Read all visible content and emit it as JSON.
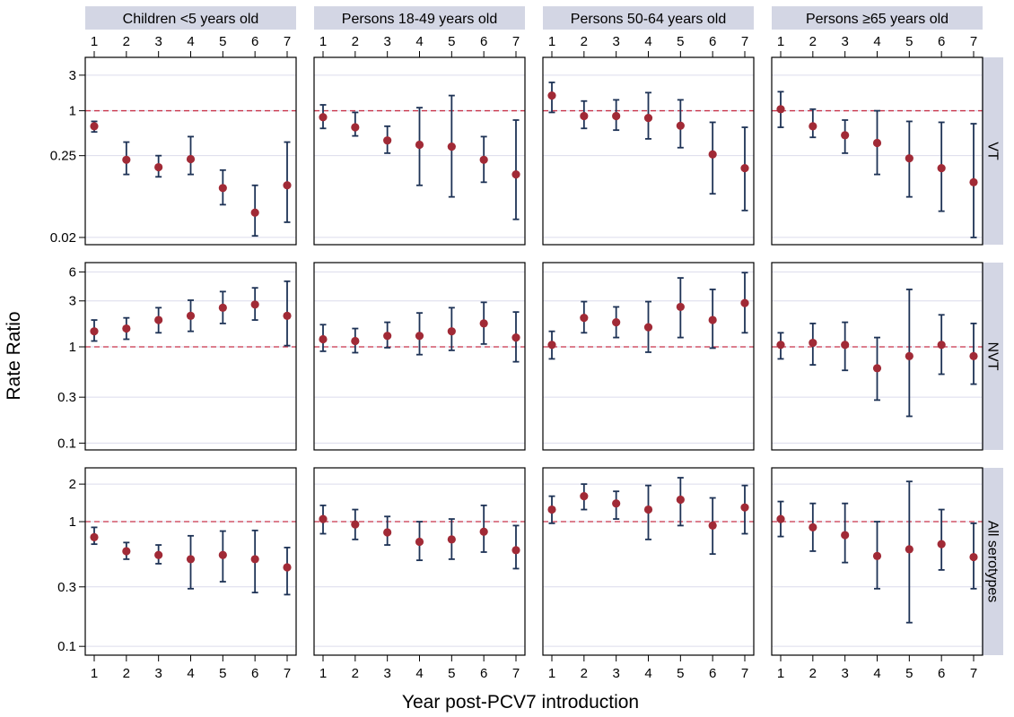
{
  "chart_data": {
    "type": "scatter",
    "description_kind": "faceted point estimates with 95% confidence intervals, log y-axis",
    "xlabel": "Year post-PCV7 introduction",
    "ylabel": "Rate Ratio",
    "x_ticks": [
      1,
      2,
      3,
      4,
      5,
      6,
      7
    ],
    "y_scale": "log",
    "reference_line": 1,
    "grid": "horizontal",
    "columns": [
      "Children <5 years old",
      "Persons 18-49 years old",
      "Persons 50-64 years old",
      "Persons ≥65 years old"
    ],
    "rows": [
      {
        "label": "VT",
        "y_ticks": [
          0.02,
          0.25,
          1,
          3
        ],
        "y_tick_labels": [
          "0.02",
          "0.25",
          "1",
          "3"
        ],
        "ylim": [
          0.016,
          5.2
        ],
        "panels": [
          {
            "estimate": [
              0.62,
              0.22,
              0.175,
              0.225,
              0.092,
              0.043,
              0.1
            ],
            "lower": [
              0.52,
              0.14,
              0.13,
              0.14,
              0.055,
              0.021,
              0.032
            ],
            "upper": [
              0.72,
              0.38,
              0.25,
              0.45,
              0.16,
              0.1,
              0.38
            ]
          },
          {
            "estimate": [
              0.82,
              0.6,
              0.4,
              0.35,
              0.33,
              0.22,
              0.14
            ],
            "lower": [
              0.58,
              0.46,
              0.27,
              0.1,
              0.07,
              0.11,
              0.035
            ],
            "upper": [
              1.2,
              0.95,
              0.62,
              1.1,
              1.6,
              0.45,
              0.75
            ]
          },
          {
            "estimate": [
              1.6,
              0.85,
              0.85,
              0.8,
              0.63,
              0.26,
              0.17
            ],
            "lower": [
              0.95,
              0.58,
              0.55,
              0.42,
              0.32,
              0.077,
              0.046
            ],
            "upper": [
              2.4,
              1.35,
              1.4,
              1.75,
              1.4,
              0.7,
              0.6
            ]
          },
          {
            "estimate": [
              1.05,
              0.62,
              0.47,
              0.37,
              0.23,
              0.17,
              0.11
            ],
            "lower": [
              0.6,
              0.44,
              0.27,
              0.14,
              0.07,
              0.045,
              0.02
            ],
            "upper": [
              1.8,
              1.05,
              0.75,
              1.0,
              0.72,
              0.7,
              0.67
            ]
          }
        ]
      },
      {
        "label": "NVT",
        "y_ticks": [
          0.1,
          0.3,
          1,
          3,
          6
        ],
        "y_tick_labels": [
          "0.1",
          "0.3",
          "1",
          "3",
          "6"
        ],
        "ylim": [
          0.085,
          7.5
        ],
        "panels": [
          {
            "estimate": [
              1.45,
              1.55,
              1.9,
              2.1,
              2.55,
              2.75,
              2.1
            ],
            "lower": [
              1.15,
              1.2,
              1.4,
              1.45,
              1.75,
              1.9,
              1.03
            ],
            "upper": [
              1.9,
              2.0,
              2.55,
              3.05,
              3.75,
              4.1,
              4.8
            ]
          },
          {
            "estimate": [
              1.2,
              1.15,
              1.3,
              1.3,
              1.45,
              1.75,
              1.25
            ],
            "lower": [
              0.9,
              0.87,
              0.98,
              0.83,
              0.92,
              1.07,
              0.7
            ],
            "upper": [
              1.7,
              1.55,
              1.8,
              2.25,
              2.55,
              2.9,
              2.3
            ]
          },
          {
            "estimate": [
              1.05,
              2.0,
              1.8,
              1.6,
              2.6,
              1.9,
              2.85
            ],
            "lower": [
              0.75,
              1.4,
              1.25,
              0.88,
              1.25,
              0.97,
              1.4
            ],
            "upper": [
              1.45,
              2.95,
              2.6,
              2.95,
              5.2,
              3.95,
              5.9
            ]
          },
          {
            "estimate": [
              1.05,
              1.1,
              1.05,
              0.6,
              0.8,
              1.05,
              0.8
            ],
            "lower": [
              0.75,
              0.65,
              0.57,
              0.28,
              0.19,
              0.52,
              0.41
            ],
            "upper": [
              1.4,
              1.75,
              1.8,
              1.25,
              3.95,
              2.15,
              1.75
            ]
          }
        ]
      },
      {
        "label": "All serotypes",
        "y_ticks": [
          0.1,
          0.3,
          1,
          2
        ],
        "y_tick_labels": [
          "0.1",
          "0.3",
          "1",
          "2"
        ],
        "ylim": [
          0.085,
          2.7
        ],
        "panels": [
          {
            "estimate": [
              0.75,
              0.58,
              0.54,
              0.5,
              0.54,
              0.5,
              0.43
            ],
            "lower": [
              0.66,
              0.5,
              0.46,
              0.29,
              0.33,
              0.27,
              0.26
            ],
            "upper": [
              0.9,
              0.68,
              0.65,
              0.77,
              0.84,
              0.85,
              0.62
            ]
          },
          {
            "estimate": [
              1.05,
              0.95,
              0.82,
              0.69,
              0.72,
              0.83,
              0.59
            ],
            "lower": [
              0.8,
              0.72,
              0.65,
              0.49,
              0.5,
              0.57,
              0.42
            ],
            "upper": [
              1.35,
              1.25,
              1.1,
              1.0,
              1.05,
              1.35,
              0.93
            ]
          },
          {
            "estimate": [
              1.25,
              1.6,
              1.4,
              1.25,
              1.5,
              0.93,
              1.3
            ],
            "lower": [
              0.97,
              1.25,
              1.05,
              0.72,
              0.93,
              0.55,
              0.8
            ],
            "upper": [
              1.6,
              2.0,
              1.75,
              1.95,
              2.25,
              1.55,
              1.95
            ]
          },
          {
            "estimate": [
              1.05,
              0.9,
              0.78,
              0.53,
              0.6,
              0.66,
              0.52
            ],
            "lower": [
              0.76,
              0.58,
              0.47,
              0.29,
              0.155,
              0.41,
              0.29
            ],
            "upper": [
              1.45,
              1.4,
              1.4,
              1.0,
              2.1,
              1.25,
              0.97
            ]
          }
        ]
      }
    ]
  },
  "style": {
    "point_color": "#a12a36",
    "bar_color": "#1e3356",
    "ref_line_color": "#c8334a",
    "grid_color": "#dcdcec",
    "strip_fill": "#d3d6e4"
  }
}
